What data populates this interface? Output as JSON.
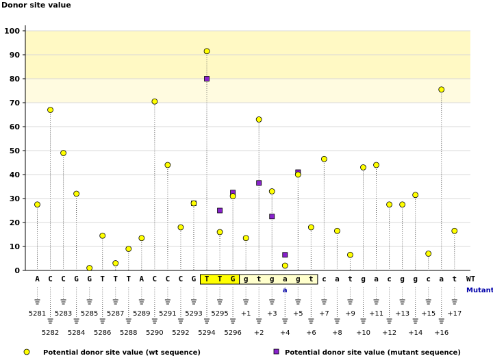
{
  "chart_data": {
    "type": "scatter",
    "title": "",
    "ylabel": "Donor site value",
    "ylim": [
      0,
      100
    ],
    "yticks": [
      0,
      10,
      20,
      30,
      40,
      50,
      60,
      70,
      80,
      90,
      100
    ],
    "grid": true,
    "highlight_band": [
      80,
      100
    ],
    "row_labels": {
      "wt": "WT",
      "mutant": "Mutant"
    },
    "sequence": [
      "A",
      "C",
      "C",
      "G",
      "G",
      "T",
      "T",
      "T",
      "A",
      "C",
      "C",
      "C",
      "G",
      "T",
      "T",
      "G",
      "g",
      "t",
      "g",
      "a",
      "g",
      "t",
      "c",
      "a",
      "t",
      "g",
      "a",
      "c",
      "g",
      "g",
      "c",
      "a",
      "t"
    ],
    "mutant_sequence": [
      "",
      "",
      "",
      "",
      "",
      "",
      "",
      "",
      "",
      "",
      "",
      "",
      "",
      "",
      "",
      "",
      "",
      "",
      "",
      "a",
      "",
      "",
      "",
      "",
      "",
      "",
      "",
      "",
      "",
      "",
      "",
      "",
      ""
    ],
    "boxed_exon": [
      13,
      15
    ],
    "boxed_intron": [
      16,
      21
    ],
    "positions": [
      "5281",
      "5282",
      "5283",
      "5284",
      "5285",
      "5286",
      "5287",
      "5288",
      "5289",
      "5290",
      "5291",
      "5292",
      "5293",
      "5294",
      "5295",
      "5296",
      "+1",
      "+2",
      "+3",
      "+4",
      "+5",
      "+6",
      "+7",
      "+8",
      "+9",
      "+10",
      "+11",
      "+12",
      "+13",
      "+14",
      "+15",
      "+16",
      "+17"
    ],
    "series": [
      {
        "name": "Potential donor site value (wt sequence)",
        "color": "#ffff00",
        "marker": "circle",
        "values": [
          27.5,
          67,
          49,
          32,
          1,
          14.5,
          3,
          9,
          13.5,
          70.5,
          44,
          18,
          28,
          91.5,
          16,
          31,
          13.5,
          63,
          33,
          2,
          40,
          18,
          46.5,
          16.5,
          6.5,
          43,
          44,
          27.5,
          27.5,
          31.5,
          7,
          75.5,
          16.5
        ]
      },
      {
        "name": "Potential donor site value (mutant sequence)",
        "color": "#8822cc",
        "marker": "square",
        "values": [
          null,
          null,
          null,
          null,
          null,
          null,
          null,
          null,
          null,
          null,
          null,
          null,
          28,
          80,
          25,
          32.5,
          null,
          36.5,
          22.5,
          6.5,
          41,
          null,
          null,
          null,
          null,
          null,
          null,
          null,
          null,
          null,
          null,
          null,
          null
        ]
      }
    ]
  }
}
